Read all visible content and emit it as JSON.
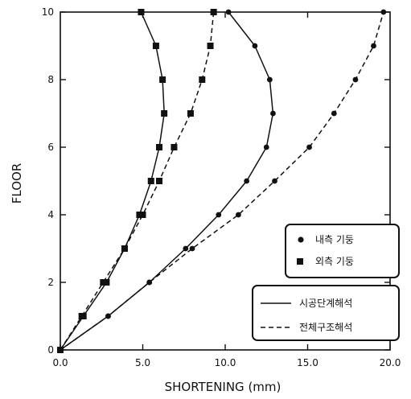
{
  "chart_data": {
    "type": "line",
    "xlabel": "SHORTENING (mm)",
    "ylabel": "FLOOR",
    "xlim": [
      0,
      20
    ],
    "ylim": [
      0,
      10
    ],
    "x_ticks": [
      "0.0",
      "5.0",
      "10.0",
      "15.0",
      "20.0"
    ],
    "y_ticks": [
      "0",
      "2",
      "4",
      "6",
      "8",
      "10"
    ],
    "grid": false,
    "legend_markers": {
      "position": "lower-right",
      "entries": [
        {
          "label": "내측 기둥",
          "marker": "circle"
        },
        {
          "label": "외측 기둥",
          "marker": "square"
        }
      ]
    },
    "legend_lines": {
      "position": "lower-right",
      "entries": [
        {
          "label": "시공단계해석",
          "style": "solid"
        },
        {
          "label": "전체구조해석",
          "style": "dashed"
        }
      ]
    },
    "series": [
      {
        "column": "inner",
        "marker": "circle",
        "style": "solid",
        "x": [
          0,
          2.9,
          5.4,
          7.6,
          9.6,
          11.3,
          12.5,
          12.9,
          12.7,
          11.8,
          10.2
        ],
        "y": [
          0,
          1,
          2,
          3,
          4,
          5,
          6,
          7,
          8,
          9,
          10
        ]
      },
      {
        "column": "inner",
        "marker": "circle",
        "style": "dashed",
        "x": [
          0,
          2.9,
          5.4,
          8.0,
          10.8,
          13.0,
          15.1,
          16.6,
          17.9,
          19.0,
          19.6
        ],
        "y": [
          0,
          1,
          2,
          3,
          4,
          5,
          6,
          7,
          8,
          9,
          10
        ]
      },
      {
        "column": "outer",
        "marker": "square",
        "style": "solid",
        "x": [
          0,
          1.4,
          2.8,
          3.9,
          4.8,
          5.5,
          6.0,
          6.3,
          6.2,
          5.8,
          4.9
        ],
        "y": [
          0,
          1,
          2,
          3,
          4,
          5,
          6,
          7,
          8,
          9,
          10
        ]
      },
      {
        "column": "outer",
        "marker": "square",
        "style": "dashed",
        "x": [
          0,
          1.3,
          2.6,
          3.9,
          5.0,
          6.0,
          6.9,
          7.9,
          8.6,
          9.1,
          9.3
        ],
        "y": [
          0,
          1,
          2,
          3,
          4,
          5,
          6,
          7,
          8,
          9,
          10
        ]
      }
    ],
    "colors": {
      "ink": "#111111",
      "background": "#ffffff"
    }
  }
}
